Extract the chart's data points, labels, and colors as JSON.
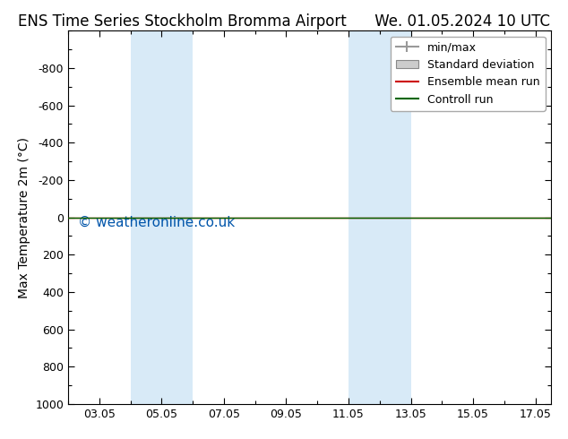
{
  "title_left": "ENS Time Series Stockholm Bromma Airport",
  "title_right": "We. 01.05.2024 10 UTC",
  "ylabel": "Max Temperature 2m (°C)",
  "watermark": "© weatheronline.co.uk",
  "xtick_labels": [
    "03.05",
    "05.05",
    "07.05",
    "09.05",
    "11.05",
    "13.05",
    "15.05",
    "17.05"
  ],
  "xtick_positions": [
    3,
    5,
    7,
    9,
    11,
    13,
    15,
    17
  ],
  "xlim": [
    2.0,
    17.5
  ],
  "ylim_top": -1000,
  "ylim_bottom": 1000,
  "ytick_positions": [
    -800,
    -600,
    -400,
    -200,
    0,
    200,
    400,
    600,
    800,
    1000
  ],
  "ytick_labels": [
    "-800",
    "-600",
    "-400",
    "-200",
    "0",
    "200",
    "400",
    "600",
    "800",
    "1000"
  ],
  "shaded_bands": [
    {
      "x_start": 4.0,
      "x_end": 5.0,
      "color": "#d8eaf7"
    },
    {
      "x_start": 5.0,
      "x_end": 6.0,
      "color": "#d8eaf7"
    },
    {
      "x_start": 11.0,
      "x_end": 12.0,
      "color": "#d8eaf7"
    },
    {
      "x_start": 12.0,
      "x_end": 13.0,
      "color": "#d8eaf7"
    }
  ],
  "horizontal_line_y": 0,
  "line_green": "#006600",
  "line_red": "#cc0000",
  "line_gray": "#999999",
  "background_color": "#ffffff",
  "plot_bg_color": "#ffffff",
  "legend_items": [
    {
      "label": "min/max",
      "color": "#999999",
      "type": "errorbar"
    },
    {
      "label": "Standard deviation",
      "color": "#cccccc",
      "type": "band"
    },
    {
      "label": "Ensemble mean run",
      "color": "#cc0000",
      "type": "line"
    },
    {
      "label": "Controll run",
      "color": "#006600",
      "type": "line"
    }
  ],
  "title_fontsize": 12,
  "axis_label_fontsize": 10,
  "tick_fontsize": 9,
  "legend_fontsize": 9,
  "watermark_color": "#0055aa",
  "watermark_fontsize": 11
}
